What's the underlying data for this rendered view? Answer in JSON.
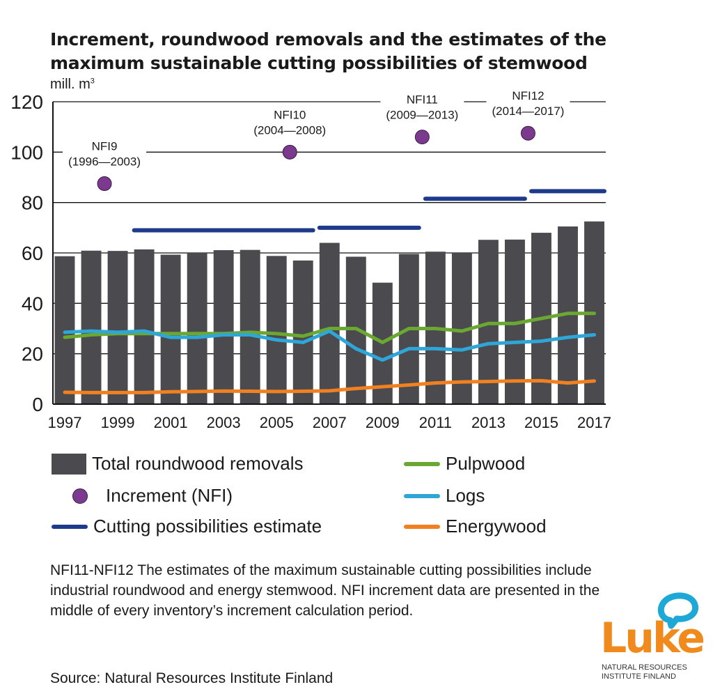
{
  "title": "Increment, roundwood removals and the estimates of the maximum sustainable cutting possibilities of stemwood",
  "unit": "mill. m",
  "unit_sup": "3",
  "chart_data": {
    "type": "bar",
    "ylim": [
      0,
      120
    ],
    "yticks": [
      0,
      20,
      40,
      60,
      80,
      100,
      120
    ],
    "x": [
      1997,
      1998,
      1999,
      2000,
      2001,
      2002,
      2003,
      2004,
      2005,
      2006,
      2007,
      2008,
      2009,
      2010,
      2011,
      2012,
      2013,
      2014,
      2015,
      2016,
      2017
    ],
    "xtick_labels": [
      "1997",
      "1999",
      "2001",
      "2003",
      "2005",
      "2007",
      "2009",
      "2011",
      "2013",
      "2015",
      "2017"
    ],
    "grid": "horizontal",
    "bars": {
      "name": "Total roundwood removals",
      "color": "#4a4a4f",
      "values": [
        58.7,
        60.9,
        60.8,
        61.4,
        59.3,
        60.2,
        61.1,
        61.2,
        58.8,
        57.0,
        64.0,
        58.5,
        48.2,
        59.6,
        60.5,
        59.8,
        65.2,
        65.3,
        68.0,
        70.5,
        72.5
      ]
    },
    "lines": [
      {
        "name": "Pulpwood",
        "color": "#6aa832",
        "values": [
          26.5,
          27.5,
          28.0,
          28.0,
          28.0,
          28.0,
          28.0,
          28.5,
          28.0,
          27.0,
          30.0,
          30.0,
          24.5,
          30.0,
          30.0,
          29.0,
          32.0,
          32.0,
          34.0,
          36.0,
          36.0
        ]
      },
      {
        "name": "Logs",
        "color": "#2fa6d8",
        "values": [
          28.5,
          29.0,
          28.5,
          29.0,
          26.5,
          26.5,
          27.5,
          27.5,
          25.5,
          24.5,
          29.0,
          22.0,
          17.5,
          22.0,
          22.0,
          21.5,
          24.0,
          24.5,
          25.0,
          26.5,
          27.5
        ]
      },
      {
        "name": "Energywood",
        "color": "#f08020",
        "values": [
          4.7,
          4.6,
          4.6,
          4.6,
          4.9,
          5.0,
          5.2,
          5.1,
          5.0,
          5.1,
          5.3,
          6.2,
          6.9,
          7.6,
          8.4,
          8.8,
          9.0,
          9.2,
          9.3,
          8.4,
          9.2
        ]
      }
    ],
    "points": {
      "name": "Increment (NFI)",
      "color": "#7b3a8e",
      "data": [
        {
          "x": 1998.5,
          "y": 87.5,
          "label1": "NFI9",
          "label2": "(1996—2003)"
        },
        {
          "x": 2005.5,
          "y": 100.0,
          "label1": "NFI10",
          "label2": "(2004—2008)"
        },
        {
          "x": 2010.5,
          "y": 106.0,
          "label1": "NFI11",
          "label2": "(2009—2013)"
        },
        {
          "x": 2014.5,
          "y": 107.5,
          "label1": "NFI12",
          "label2": "(2014—2017)"
        }
      ]
    },
    "segments": {
      "name": "Cutting possibilities estimate",
      "color": "#1e3a8a",
      "data": [
        {
          "x0": 2000.0,
          "x1": 2006.0,
          "y": 69.0
        },
        {
          "x0": 2007.0,
          "x1": 2010.0,
          "y": 70.0
        },
        {
          "x0": 2011.0,
          "x1": 2014.0,
          "y": 81.5
        },
        {
          "x0": 2015.0,
          "x1": 2017.0,
          "y": 84.5
        }
      ]
    }
  },
  "legend": {
    "bars": "Total roundwood removals",
    "points": "Increment (NFI)",
    "segments": "Cutting possibilities estimate",
    "pulpwood": "Pulpwood",
    "logs": "Logs",
    "energywood": "Energywood"
  },
  "note": "NFI11-NFI12 The estimates of the maximum sustainable cutting possibilities include industrial roundwood and energy stemwood. NFI increment data are presented in the middle of every inventory’s increment calculation period.",
  "source": "Source: Natural Resources Institute Finland",
  "logo": {
    "name": "Luke",
    "subtitle_line1": "NATURAL RESOURCES",
    "subtitle_line2": "INSTITUTE FINLAND"
  }
}
